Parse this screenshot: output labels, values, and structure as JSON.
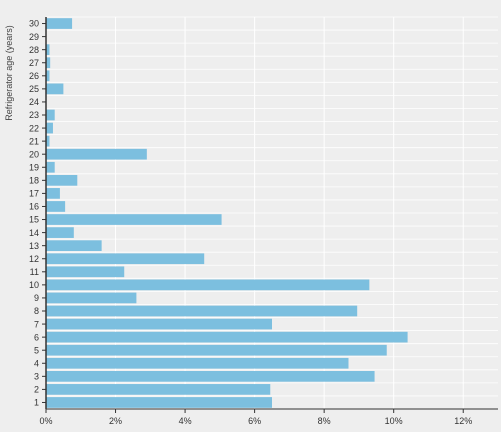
{
  "chart_data": {
    "type": "bar",
    "orientation": "horizontal",
    "ylabel": "Refrigerator age (years)",
    "xlabel": "",
    "categories": [
      "1",
      "2",
      "3",
      "4",
      "5",
      "6",
      "7",
      "8",
      "9",
      "10",
      "11",
      "12",
      "13",
      "14",
      "15",
      "16",
      "17",
      "18",
      "19",
      "20",
      "21",
      "22",
      "23",
      "24",
      "25",
      "26",
      "27",
      "28",
      "29",
      "30"
    ],
    "values": [
      6.5,
      6.45,
      9.45,
      8.7,
      9.8,
      10.4,
      6.5,
      8.95,
      2.6,
      9.3,
      2.25,
      4.55,
      1.6,
      0.8,
      5.05,
      0.55,
      0.4,
      0.9,
      0.25,
      2.9,
      0.1,
      0.2,
      0.25,
      0.0,
      0.5,
      0.1,
      0.12,
      0.1,
      0.0,
      0.75
    ],
    "xlim": [
      0,
      13
    ],
    "xticks": [
      "0%",
      "2%",
      "4%",
      "6%",
      "8%",
      "10%",
      "12%"
    ],
    "xtick_values": [
      0,
      2,
      4,
      6,
      8,
      10,
      12
    ],
    "grid": true,
    "colors": {
      "bar": "#7cbfdf",
      "background": "#eeeeee",
      "grid": "#ffffff",
      "axis": "#333333"
    }
  }
}
